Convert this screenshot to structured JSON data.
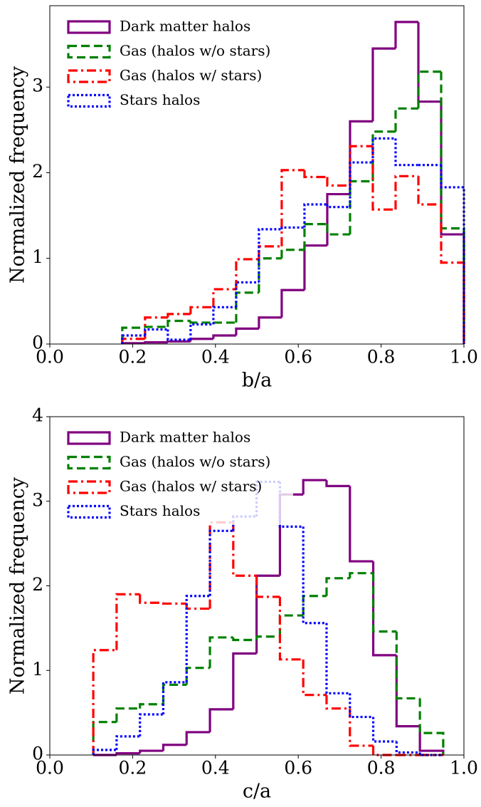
{
  "chart_data": [
    {
      "type": "histogram",
      "xlabel": "b/a",
      "ylabel": "Normalized frequency",
      "bins": [
        0.175,
        0.23,
        0.285,
        0.34,
        0.395,
        0.45,
        0.505,
        0.56,
        0.615,
        0.67,
        0.725,
        0.78,
        0.835,
        0.89,
        0.945,
        1.0
      ],
      "series": [
        {
          "name": "Dark matter halos",
          "color": "#800080",
          "linestyle": "solid",
          "values": [
            0.01,
            0.02,
            0.03,
            0.06,
            0.1,
            0.18,
            0.31,
            0.63,
            1.15,
            1.75,
            2.6,
            3.45,
            3.76,
            2.83,
            1.28
          ]
        },
        {
          "name": "Gas (halos w/o stars)",
          "color": "#008000",
          "linestyle": "dashed",
          "values": [
            0.19,
            0.2,
            0.27,
            0.25,
            0.25,
            0.6,
            1.0,
            1.1,
            1.4,
            1.28,
            1.9,
            2.48,
            2.75,
            3.18,
            1.35
          ]
        },
        {
          "name": "Gas (halos w/ stars)",
          "color": "#ff0000",
          "linestyle": "dashdot",
          "values": [
            0.06,
            0.31,
            0.35,
            0.43,
            0.64,
            0.99,
            1.14,
            2.03,
            1.95,
            1.85,
            2.31,
            1.57,
            1.96,
            1.63,
            0.95
          ]
        },
        {
          "name": "Stars halos",
          "color": "#0000ff",
          "linestyle": "dotted",
          "values": [
            0.1,
            0.17,
            0.05,
            0.23,
            0.43,
            0.72,
            1.34,
            1.36,
            1.63,
            1.6,
            2.12,
            2.4,
            2.09,
            2.09,
            1.83
          ]
        }
      ],
      "xlim": [
        0,
        1
      ],
      "ylim": [
        0,
        3.95
      ],
      "xticks": [
        {
          "value": 0,
          "label": "0.0"
        },
        0.2,
        0.4,
        0.6,
        0.8,
        {
          "value": 1,
          "label": "1.0"
        }
      ],
      "yticks": [
        0,
        1,
        2,
        3
      ],
      "legend": "upper left"
    },
    {
      "type": "histogram",
      "xlabel": "c/a",
      "ylabel": "Normalized frequency",
      "bins": [
        0.105,
        0.1613,
        0.2177,
        0.274,
        0.3303,
        0.3867,
        0.443,
        0.4993,
        0.5557,
        0.612,
        0.6683,
        0.7247,
        0.781,
        0.8373,
        0.8937,
        0.95
      ],
      "series": [
        {
          "name": "Dark matter halos",
          "color": "#800080",
          "linestyle": "solid",
          "values": [
            0.0,
            0.02,
            0.05,
            0.12,
            0.27,
            0.54,
            1.2,
            2.12,
            3.08,
            3.25,
            3.18,
            2.29,
            1.18,
            0.34,
            0.05
          ]
        },
        {
          "name": "Gas (halos w/o stars)",
          "color": "#008000",
          "linestyle": "dashed",
          "values": [
            0.39,
            0.55,
            0.6,
            0.83,
            1.03,
            1.39,
            1.36,
            1.4,
            1.65,
            1.88,
            2.09,
            2.15,
            1.46,
            0.67,
            0.26
          ]
        },
        {
          "name": "Gas (halos w/ stars)",
          "color": "#ff0000",
          "linestyle": "dashdot",
          "values": [
            1.24,
            1.9,
            1.8,
            1.79,
            1.73,
            2.75,
            2.12,
            1.87,
            1.13,
            0.71,
            0.55,
            0.11,
            0.0,
            0.0,
            0.0
          ]
        },
        {
          "name": "Stars halos",
          "color": "#0000ff",
          "linestyle": "dotted",
          "values": [
            0.06,
            0.22,
            0.48,
            0.86,
            1.88,
            2.65,
            2.82,
            3.23,
            2.7,
            1.56,
            0.73,
            0.45,
            0.16,
            0.03,
            0.0
          ]
        }
      ],
      "xlim": [
        0,
        1
      ],
      "ylim": [
        0,
        4
      ],
      "xticks": [
        {
          "value": 0,
          "label": "0.0"
        },
        0.2,
        0.4,
        0.6,
        0.8,
        {
          "value": 1,
          "label": "1.0"
        }
      ],
      "yticks": [
        0,
        1,
        2,
        3,
        4
      ],
      "legend": "upper left"
    }
  ]
}
